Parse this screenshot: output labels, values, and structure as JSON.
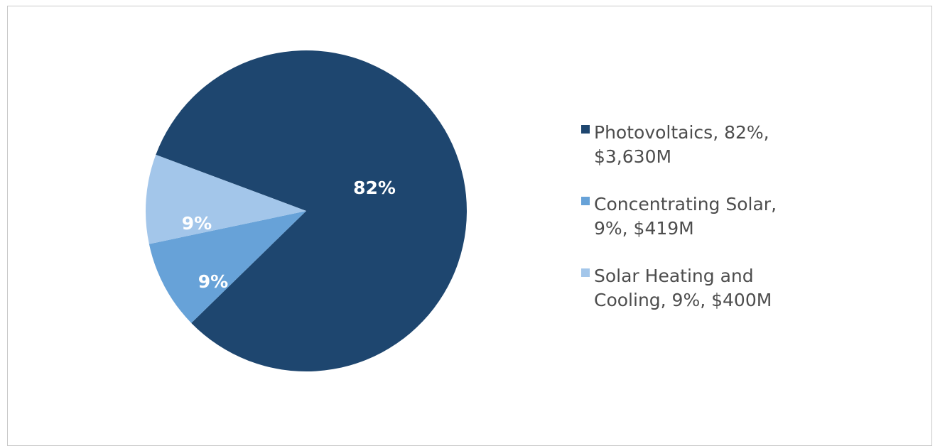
{
  "chart_data": {
    "type": "pie",
    "categories": [
      "Photovoltaics",
      "Concentrating Solar",
      "Solar Heating and Cooling"
    ],
    "values": [
      82,
      9,
      9
    ],
    "slice_labels": [
      "82%",
      "9%",
      "9%"
    ],
    "colors": [
      "#1e466f",
      "#67a2d8",
      "#a3c6ea"
    ],
    "legend_position": "right",
    "legend": [
      {
        "label": "Photovoltaics, 82%, $3,630M",
        "color": "#1e466f"
      },
      {
        "label": "Concentrating Solar, 9%, $419M",
        "color": "#67a2d8"
      },
      {
        "label": "Solar Heating and Cooling, 9%, $400M",
        "color": "#a3c6ea"
      }
    ]
  }
}
